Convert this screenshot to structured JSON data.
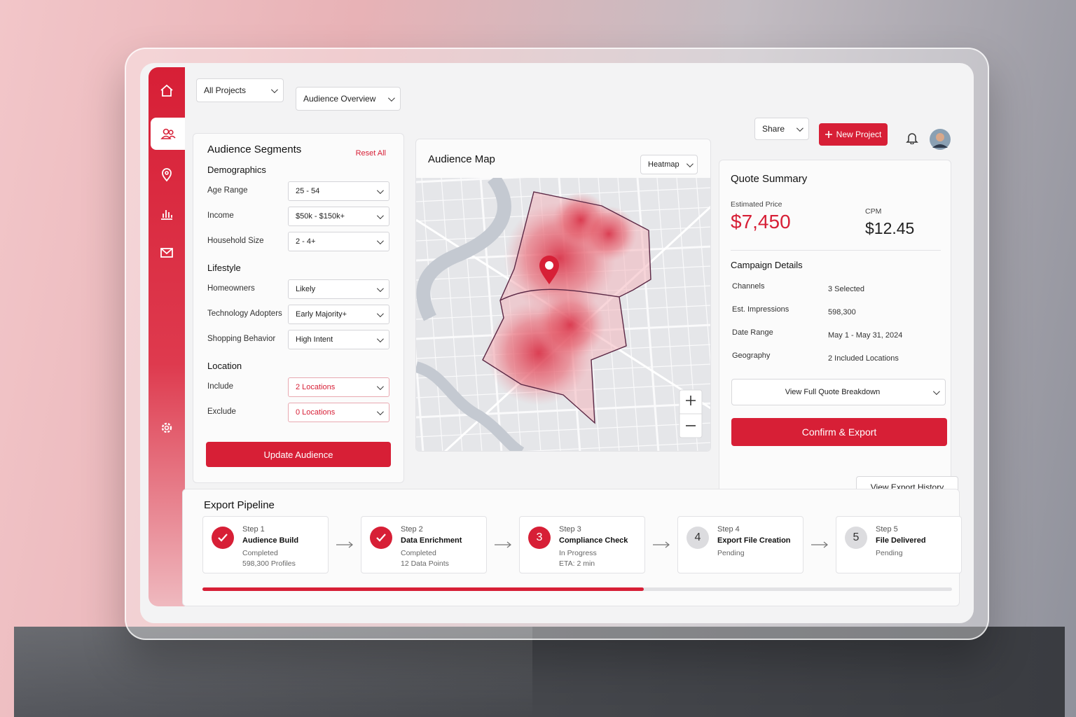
{
  "nav": {
    "projects": "All Projects",
    "view": "Audience Overview",
    "share": "Share",
    "new_project": "New Project"
  },
  "segments": {
    "title": "Audience Segments",
    "reset": "Reset All",
    "groups": [
      {
        "title": "Demographics",
        "fields": [
          {
            "label": "Age Range",
            "value": "25 - 54"
          },
          {
            "label": "Income",
            "value": "$50k - $150k+"
          },
          {
            "label": "Household Size",
            "value": "2 - 4+"
          }
        ]
      },
      {
        "title": "Lifestyle",
        "fields": [
          {
            "label": "Homeowners",
            "value": "Likely"
          },
          {
            "label": "Technology Adopters",
            "value": "Early Majority+"
          },
          {
            "label": "Shopping Behavior",
            "value": "High Intent"
          }
        ]
      },
      {
        "title": "Location",
        "fields": [
          {
            "label": "Include",
            "value": "2 Locations"
          },
          {
            "label": "Exclude",
            "value": "0 Locations"
          }
        ]
      }
    ],
    "button": "Update Audience"
  },
  "map": {
    "title": "Audience Map",
    "mode": "Heatmap"
  },
  "quote": {
    "title": "Quote Summary",
    "price_label": "Estimated Price",
    "price": "$7,450",
    "cpm_label": "CPM",
    "cpm": "$12.45",
    "details_title": "Campaign Details",
    "details": [
      {
        "label": "Channels",
        "value": "3 Selected"
      },
      {
        "label": "Est. Impressions",
        "value": "598,300"
      },
      {
        "label": "Date Range",
        "value": "May 1 - May 31, 2024"
      },
      {
        "label": "Geography",
        "value": "2 Included Locations"
      }
    ],
    "breakdown": "View Full Quote Breakdown",
    "confirm": "Confirm & Export"
  },
  "pipeline": {
    "title": "Export Pipeline",
    "history": "View Export History",
    "steps": [
      {
        "step": "Step 1",
        "name": "Audience Build",
        "status": "Completed",
        "detail": "598,300 Profiles"
      },
      {
        "step": "Step 2",
        "name": "Data Enrichment",
        "status": "Completed",
        "detail": "12 Data Points"
      },
      {
        "marker": "3",
        "step": "Step 3",
        "name": "Compliance Check",
        "status": "In Progress",
        "detail": "ETA: 2 min"
      },
      {
        "marker": "4",
        "step": "Step 4",
        "name": "Export File Creation",
        "status": "Pending"
      },
      {
        "marker": "5",
        "step": "Step 5",
        "name": "File Delivered",
        "status": "Pending"
      }
    ]
  }
}
